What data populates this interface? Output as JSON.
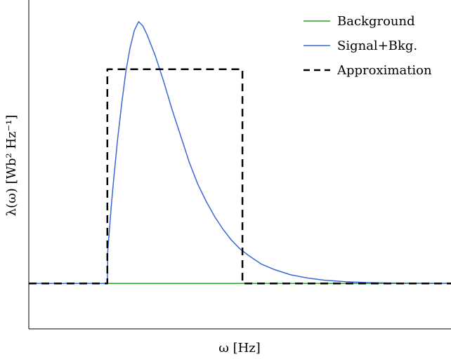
{
  "chart_data": {
    "type": "line",
    "title": "",
    "xlabel": "ω [Hz]",
    "ylabel": "λ(ω) [Wb² Hz⁻¹]",
    "xticks": [],
    "yticks": [],
    "xlim": [
      0,
      100
    ],
    "ylim": [
      -0.21,
      1.31
    ],
    "grid": false,
    "legend_position": "top-right",
    "series": [
      {
        "name": "Background",
        "color": "#2ca02c",
        "style": "solid",
        "x": [
          0,
          100
        ],
        "y": [
          0,
          0
        ]
      },
      {
        "name": "Signal+Bkg.",
        "color": "#3b67d6",
        "style": "solid",
        "x": [
          0,
          18.6,
          18.7,
          19.5,
          20,
          21,
          22,
          23,
          24,
          25,
          26,
          27,
          28,
          30,
          32,
          34,
          36,
          38,
          40,
          42,
          44,
          46,
          48,
          50,
          52,
          55,
          58,
          62,
          66,
          70,
          75,
          80,
          85,
          90,
          95,
          100
        ],
        "y": [
          0,
          0,
          0.15,
          0.35,
          0.46,
          0.66,
          0.83,
          0.98,
          1.09,
          1.17,
          1.21,
          1.19,
          1.15,
          1.05,
          0.93,
          0.8,
          0.68,
          0.56,
          0.46,
          0.38,
          0.31,
          0.25,
          0.2,
          0.16,
          0.13,
          0.09,
          0.065,
          0.04,
          0.025,
          0.015,
          0.008,
          0.004,
          0.002,
          0.001,
          0.0005,
          0
        ]
      },
      {
        "name": "Approximation",
        "color": "#000000",
        "style": "dashed",
        "x": [
          0,
          18.6,
          18.6,
          50.6,
          50.6,
          100
        ],
        "y": [
          0,
          0,
          0.99,
          0.99,
          0,
          0
        ]
      }
    ]
  }
}
